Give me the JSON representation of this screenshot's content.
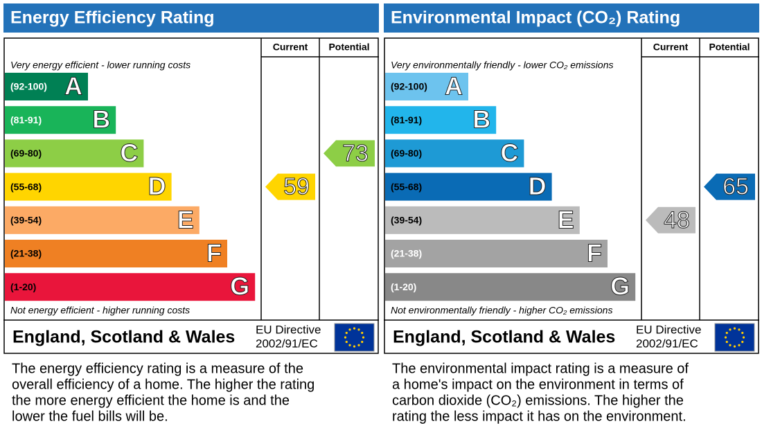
{
  "panels": [
    {
      "title": "Energy Efficiency Rating",
      "title_color": "#2372b9",
      "headers": [
        "Current",
        "Potential"
      ],
      "top_note": "Very energy efficient - lower running costs",
      "bottom_note": "Not energy efficient - higher running costs",
      "bands": [
        {
          "range": "(92-100)",
          "letter": "A",
          "color": "#008054",
          "text_color": "#ffffff"
        },
        {
          "range": "(81-91)",
          "letter": "B",
          "color": "#19b459",
          "text_color": "#ffffff"
        },
        {
          "range": "(69-80)",
          "letter": "C",
          "color": "#8dce46",
          "text_color": "#000000"
        },
        {
          "range": "(55-68)",
          "letter": "D",
          "color": "#ffd500",
          "text_color": "#000000"
        },
        {
          "range": "(39-54)",
          "letter": "E",
          "color": "#fcaa65",
          "text_color": "#000000"
        },
        {
          "range": "(21-38)",
          "letter": "F",
          "color": "#ef8023",
          "text_color": "#000000"
        },
        {
          "range": "(1-20)",
          "letter": "G",
          "color": "#e9153b",
          "text_color": "#000000"
        }
      ],
      "current": {
        "value": 59,
        "color": "#ffd500"
      },
      "potential": {
        "value": 73,
        "color": "#8dce46"
      },
      "region": "England, Scotland & Wales",
      "directive": [
        "EU Directive",
        "2002/91/EC"
      ],
      "description": [
        "The energy efficiency rating is a measure of the",
        "overall efficiency of a home. The higher the rating",
        "the more energy efficient the home is and the",
        "lower the fuel bills will be."
      ]
    },
    {
      "title": "Environmental Impact (CO₂) Rating",
      "title_color": "#2372b9",
      "headers": [
        "Current",
        "Potential"
      ],
      "top_note": "Very environmentally friendly - lower CO₂ emissions",
      "bottom_note": "Not environmentally friendly - higher CO₂ emissions",
      "bands": [
        {
          "range": "(92-100)",
          "letter": "A",
          "color": "#6dc3ee",
          "text_color": "#000000"
        },
        {
          "range": "(81-91)",
          "letter": "B",
          "color": "#22b5eb",
          "text_color": "#000000"
        },
        {
          "range": "(69-80)",
          "letter": "C",
          "color": "#1e9ad5",
          "text_color": "#000000"
        },
        {
          "range": "(55-68)",
          "letter": "D",
          "color": "#0a6bb5",
          "text_color": "#000000"
        },
        {
          "range": "(39-54)",
          "letter": "E",
          "color": "#bbbbbb",
          "text_color": "#000000"
        },
        {
          "range": "(21-38)",
          "letter": "F",
          "color": "#a3a3a3",
          "text_color": "#ffffff"
        },
        {
          "range": "(1-20)",
          "letter": "G",
          "color": "#888888",
          "text_color": "#ffffff"
        }
      ],
      "current": {
        "value": 48,
        "color": "#bbbbbb"
      },
      "potential": {
        "value": 65,
        "color": "#0a6bb5"
      },
      "region": "England, Scotland & Wales",
      "directive": [
        "EU Directive",
        "2002/91/EC"
      ],
      "description": [
        "The environmental impact rating is a measure of",
        "a home's impact on the environment in terms of",
        "carbon dioxide (CO₂) emissions. The higher the",
        "rating the less impact it has on the environment."
      ]
    }
  ]
}
